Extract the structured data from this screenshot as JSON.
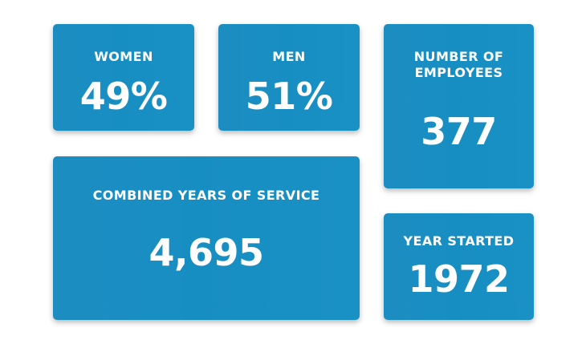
{
  "stats": {
    "women": {
      "label": "WOMEN",
      "value": "49%"
    },
    "men": {
      "label": "MEN",
      "value": "51%"
    },
    "employees": {
      "label": "NUMBER OF\nEMPLOYEES",
      "value": "377"
    },
    "service": {
      "label": "COMBINED YEARS OF SERVICE",
      "value": "4,695"
    },
    "year_started": {
      "label": "YEAR STARTED",
      "value": "1972"
    }
  },
  "colors": {
    "card_background": "#1a8fc3",
    "text": "#ffffff",
    "page_background": "#ffffff"
  }
}
